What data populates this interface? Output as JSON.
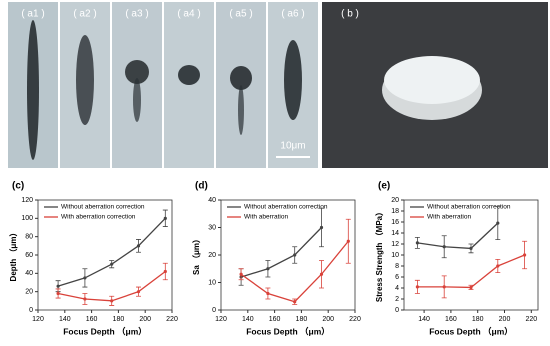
{
  "image_panels": {
    "labels": [
      "( a1 )",
      "( a2 )",
      "( a3 )",
      "( a4 )",
      "( a5 )",
      "( a6 )",
      "( b )"
    ],
    "scale_bar": "10μm"
  },
  "chart_data": [
    {
      "type": "line",
      "panel_label": "(c)",
      "x_label": "Focus Depth （μm）",
      "y_label": "Depth （μm）",
      "xlim": [
        120,
        220
      ],
      "xticks": [
        120,
        140,
        160,
        180,
        200,
        220
      ],
      "ylim": [
        0,
        120
      ],
      "yticks": [
        0,
        20,
        40,
        60,
        80,
        100,
        120
      ],
      "legend": "upper left",
      "series": [
        {
          "name": "Without aberration correction",
          "color": "#444444",
          "x": [
            135,
            155,
            175,
            195,
            215
          ],
          "values": [
            26,
            35,
            50,
            70,
            100
          ],
          "errors": [
            6,
            10,
            4,
            7,
            9
          ]
        },
        {
          "name": "With aberration correction",
          "color": "#d9423a",
          "x": [
            135,
            155,
            175,
            195,
            215
          ],
          "values": [
            18,
            12,
            10,
            20,
            42
          ],
          "errors": [
            5,
            6,
            5,
            5,
            9
          ]
        }
      ]
    },
    {
      "type": "line",
      "panel_label": "(d)",
      "x_label": "Focus Depth （μm）",
      "y_label": "Sa （μm）",
      "xlim": [
        120,
        220
      ],
      "xticks": [
        120,
        140,
        160,
        180,
        200,
        220
      ],
      "ylim": [
        0,
        40
      ],
      "yticks": [
        0,
        10,
        20,
        30,
        40
      ],
      "legend": "upper left",
      "series": [
        {
          "name": "Without aberration correction",
          "color": "#444444",
          "x": [
            135,
            155,
            175,
            195
          ],
          "values": [
            12,
            15,
            20,
            30
          ],
          "errors": [
            3,
            3,
            3,
            7
          ]
        },
        {
          "name": "With aberration",
          "color": "#d9423a",
          "x": [
            135,
            155,
            175,
            195,
            215
          ],
          "values": [
            13,
            6,
            3,
            13,
            25
          ],
          "errors": [
            2,
            2,
            1,
            5,
            8
          ]
        }
      ]
    },
    {
      "type": "line",
      "panel_label": "(e)",
      "x_label": "Focus Depth （μm）",
      "y_label": "Stress Strength （MPa）",
      "xlim": [
        125,
        225
      ],
      "xticks": [
        140,
        160,
        180,
        200,
        220
      ],
      "ylim": [
        0,
        20
      ],
      "yticks": [
        0,
        2,
        4,
        6,
        8,
        10,
        12,
        14,
        16,
        18,
        20
      ],
      "legend": "upper left",
      "series": [
        {
          "name": "Without aberration correction",
          "color": "#444444",
          "x": [
            135,
            155,
            175,
            195
          ],
          "values": [
            12.2,
            11.5,
            11.2,
            15.8
          ],
          "errors": [
            1,
            2,
            0.8,
            3
          ]
        },
        {
          "name": "With aberration",
          "color": "#d9423a",
          "x": [
            135,
            155,
            175,
            195,
            215
          ],
          "values": [
            4.2,
            4.2,
            4.1,
            8,
            10
          ],
          "errors": [
            1.2,
            2,
            0.4,
            1.2,
            2.5
          ]
        }
      ]
    }
  ]
}
